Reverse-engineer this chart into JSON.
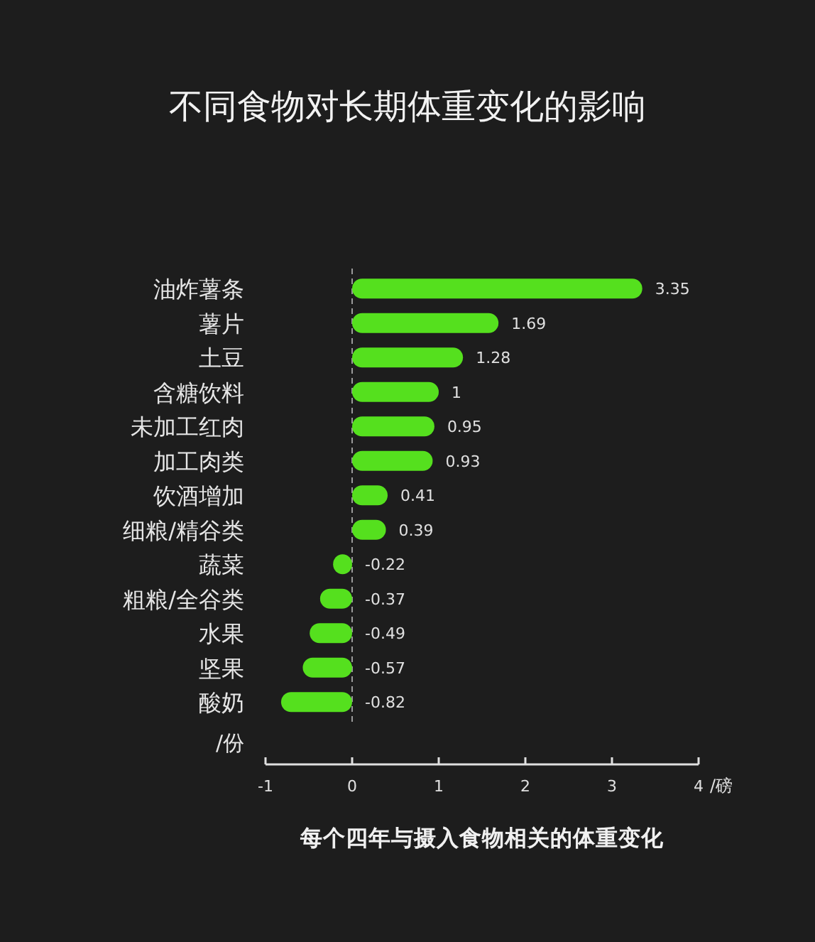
{
  "chart_data": {
    "type": "bar",
    "orientation": "horizontal",
    "title": "不同食物对长期体重变化的影响",
    "xlabel": "每个四年与摄入食物相关的体重变化",
    "ylabel": "/份",
    "annotations": [
      "/磅"
    ],
    "categories": [
      "油炸薯条",
      "薯片",
      "土豆",
      "含糖饮料",
      "未加工红肉",
      "加工肉类",
      "饮酒增加",
      "细粮/精谷类",
      "蔬菜",
      "粗粮/全谷类",
      "水果",
      "坚果",
      "酸奶"
    ],
    "values": [
      3.35,
      1.69,
      1.28,
      1,
      0.95,
      0.93,
      0.41,
      0.39,
      -0.22,
      -0.37,
      -0.49,
      -0.57,
      -0.82
    ],
    "color": "#55e01e",
    "xlim": [
      -1,
      4
    ],
    "xticks": [
      -1,
      0,
      1,
      2,
      3,
      4
    ],
    "data_labels": true,
    "ref_lines": [
      {
        "axis": "x",
        "value": 0,
        "line_style": "dashed",
        "color": "#9a9a9a"
      }
    ]
  }
}
